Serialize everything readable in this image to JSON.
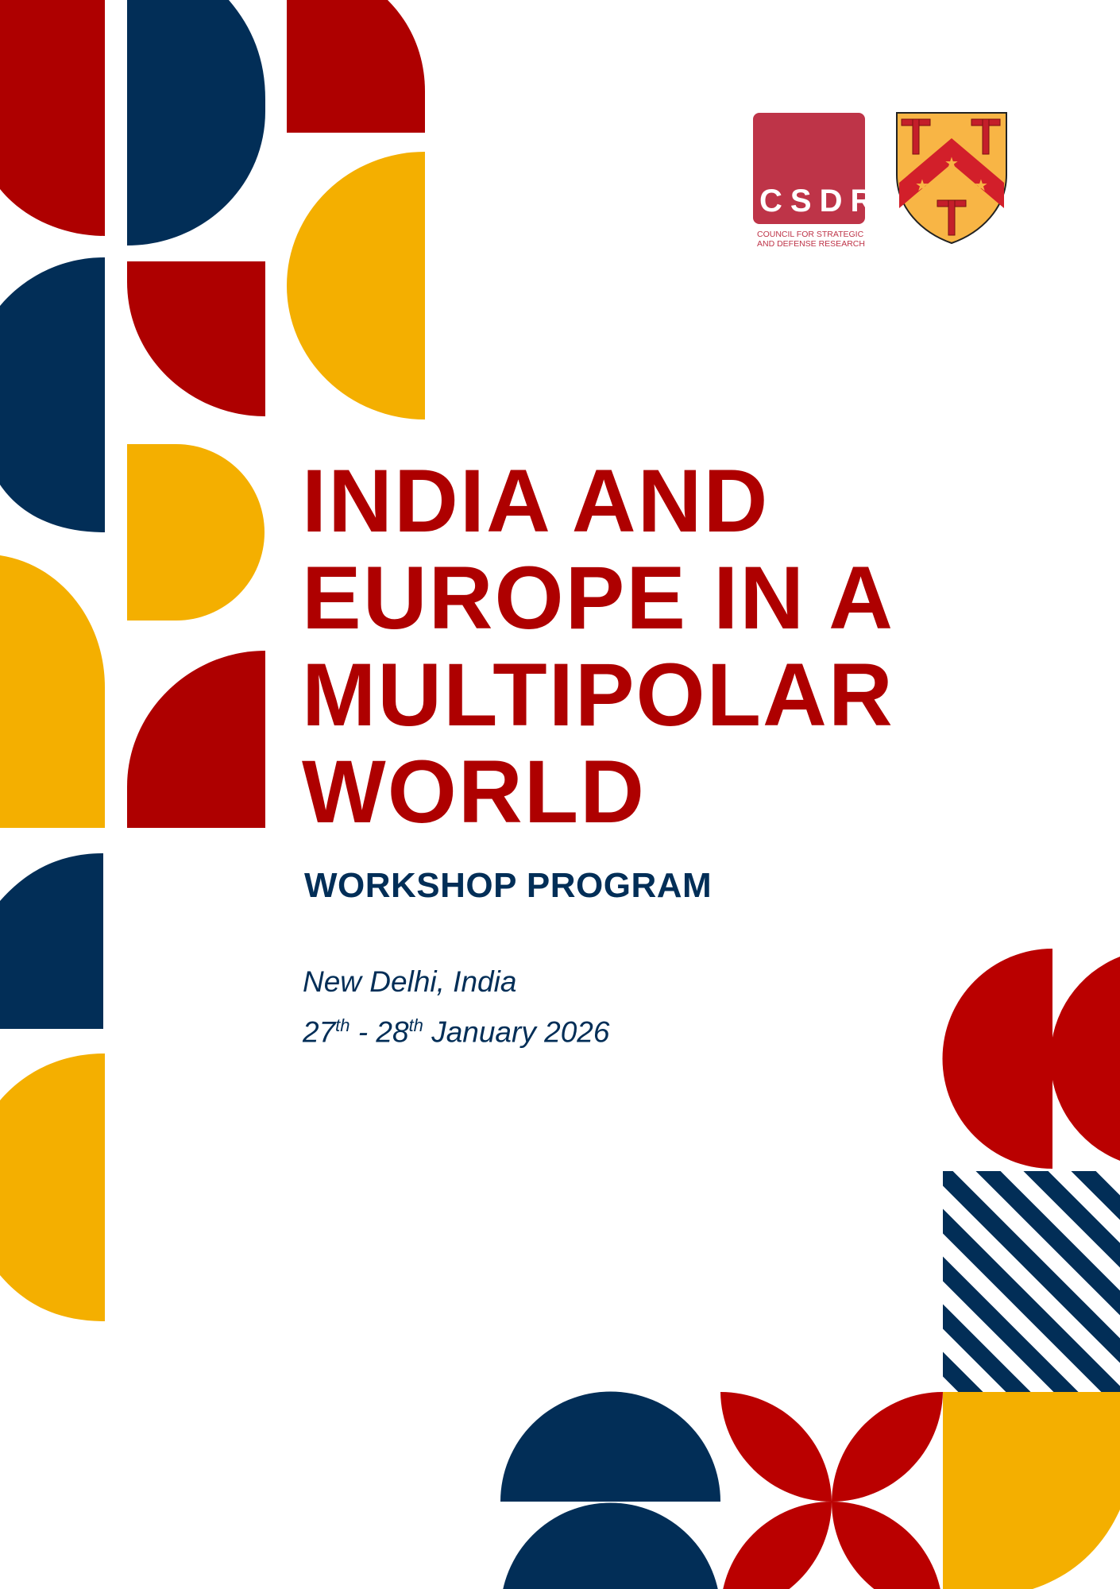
{
  "colors": {
    "red": "#AE0000",
    "navy": "#022E57",
    "yellow": "#F4AF00",
    "csdr": "#BE3448"
  },
  "logos": {
    "csdr": {
      "acronym": "CSDR",
      "line1": "COUNCIL FOR STRATEGIC",
      "line2": "AND DEFENSE RESEARCH"
    },
    "shield": {
      "icon": "crest-shield-icon"
    }
  },
  "title": {
    "lines": [
      "INDIA AND",
      "EUROPE IN A",
      "MULTIPOLAR",
      "WORLD"
    ]
  },
  "subtitle": "WORKSHOP PROGRAM",
  "location": "New Delhi, India",
  "dates": {
    "day1": "27",
    "sup1": "th",
    "sep": " - ",
    "day2": "28",
    "sup2": "th",
    "rest": " January 2026"
  }
}
